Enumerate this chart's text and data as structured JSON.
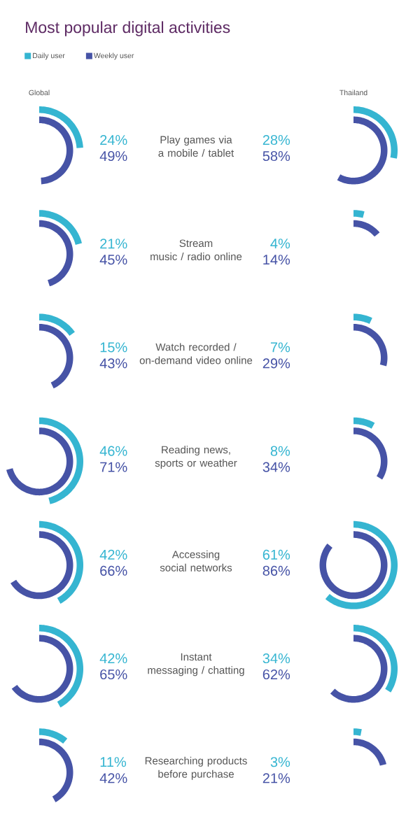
{
  "chart_data": {
    "type": "other",
    "title": "Most popular digital activities",
    "legend": "top left",
    "annotations": [
      "Global",
      "Thailand"
    ],
    "categories": [
      "Play games via\na mobile / tablet",
      "Stream\nmusic / radio online",
      "Watch recorded /\non-demand video online",
      "Reading news,\nsports or weather",
      "Accessing\nsocial networks",
      "Instant\nmessaging / chatting",
      "Researching products\nbefore purchase"
    ],
    "series": [
      {
        "name": "Daily user",
        "color": "#35b5d1",
        "values": [
          24,
          21,
          15,
          46,
          42,
          42,
          11
        ],
        "value_labels": [
          "24%",
          "21%",
          "15%",
          "46%",
          "42%",
          "42%",
          "11%"
        ]
      },
      {
        "name": "Weekly user",
        "color": "#4653a6",
        "values": [
          49,
          45,
          43,
          71,
          66,
          65,
          42
        ],
        "value_labels": [
          "49%",
          "45%",
          "43%",
          "71%",
          "66%",
          "65%",
          "42%"
        ]
      },
      {
        "color": "#35b5d1",
        "values": [
          28,
          4,
          7,
          8,
          61,
          34,
          3
        ],
        "value_labels": [
          "28%",
          "4%",
          "7%",
          "8%",
          "61%",
          "34%",
          "3%"
        ]
      },
      {
        "color": "#4653a6",
        "values": [
          58,
          14,
          29,
          34,
          86,
          62,
          21
        ],
        "value_labels": [
          "58%",
          "14%",
          "29%",
          "34%",
          "86%",
          "62%",
          "21%"
        ]
      }
    ]
  }
}
